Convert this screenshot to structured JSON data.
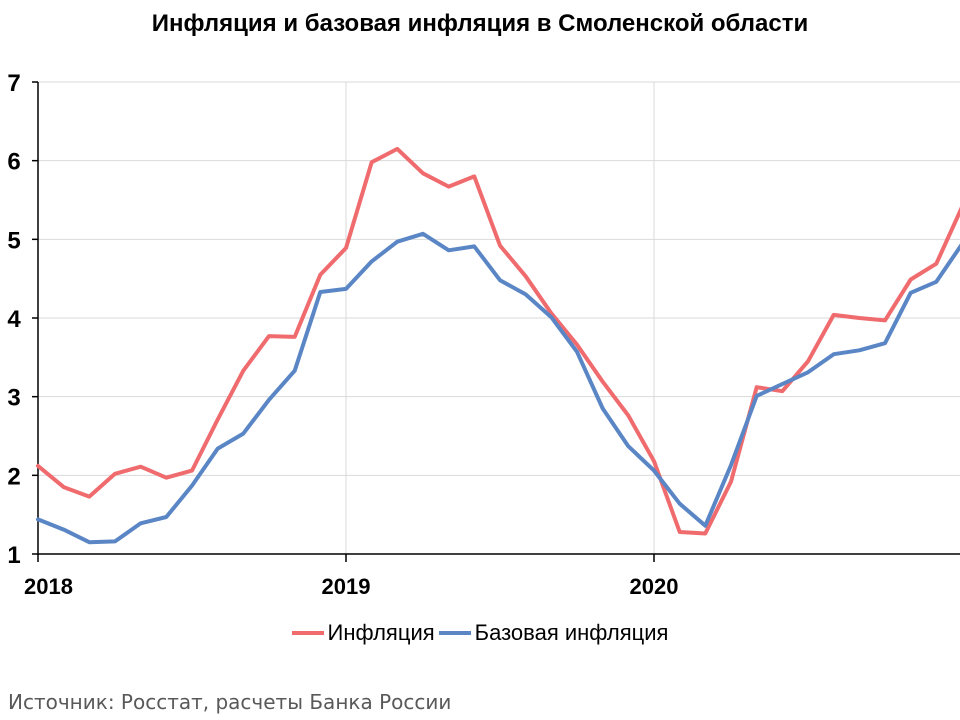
{
  "chart_data": {
    "type": "line",
    "title": "Инфляция и базовая инфляция в Смоленской области",
    "xlabel": "",
    "ylabel": "",
    "ylim": [
      1,
      7
    ],
    "yticks": [
      "1",
      "2",
      "3",
      "4",
      "5",
      "6",
      "7"
    ],
    "xticks": [
      "2018",
      "2019",
      "2020"
    ],
    "x_start": "2018-01",
    "grid": true,
    "legend_position": "bottom",
    "series": [
      {
        "name": "Инфляция",
        "color": "#EF6B6E",
        "values": [
          2.12,
          1.85,
          1.73,
          2.02,
          2.11,
          1.97,
          2.06,
          2.71,
          3.33,
          3.77,
          3.76,
          4.55,
          4.89,
          5.98,
          6.15,
          5.84,
          5.67,
          5.8,
          4.92,
          4.53,
          4.06,
          3.66,
          3.19,
          2.76,
          2.18,
          1.28,
          1.26,
          1.92,
          3.12,
          3.07,
          3.45,
          4.04,
          4.0,
          3.97,
          4.49,
          4.69,
          5.41
        ]
      },
      {
        "name": "Базовая инфляция",
        "color": "#5A86C5",
        "values": [
          1.44,
          1.31,
          1.15,
          1.16,
          1.39,
          1.47,
          1.87,
          2.34,
          2.53,
          2.96,
          3.33,
          4.33,
          4.37,
          4.72,
          4.97,
          5.07,
          4.86,
          4.91,
          4.48,
          4.3,
          4.01,
          3.57,
          2.85,
          2.37,
          2.06,
          1.64,
          1.36,
          2.13,
          3.01,
          3.16,
          3.31,
          3.54,
          3.59,
          3.68,
          4.32,
          4.46,
          4.94
        ]
      }
    ]
  },
  "source_text": "Источник: Росстат, расчеты Банка России"
}
